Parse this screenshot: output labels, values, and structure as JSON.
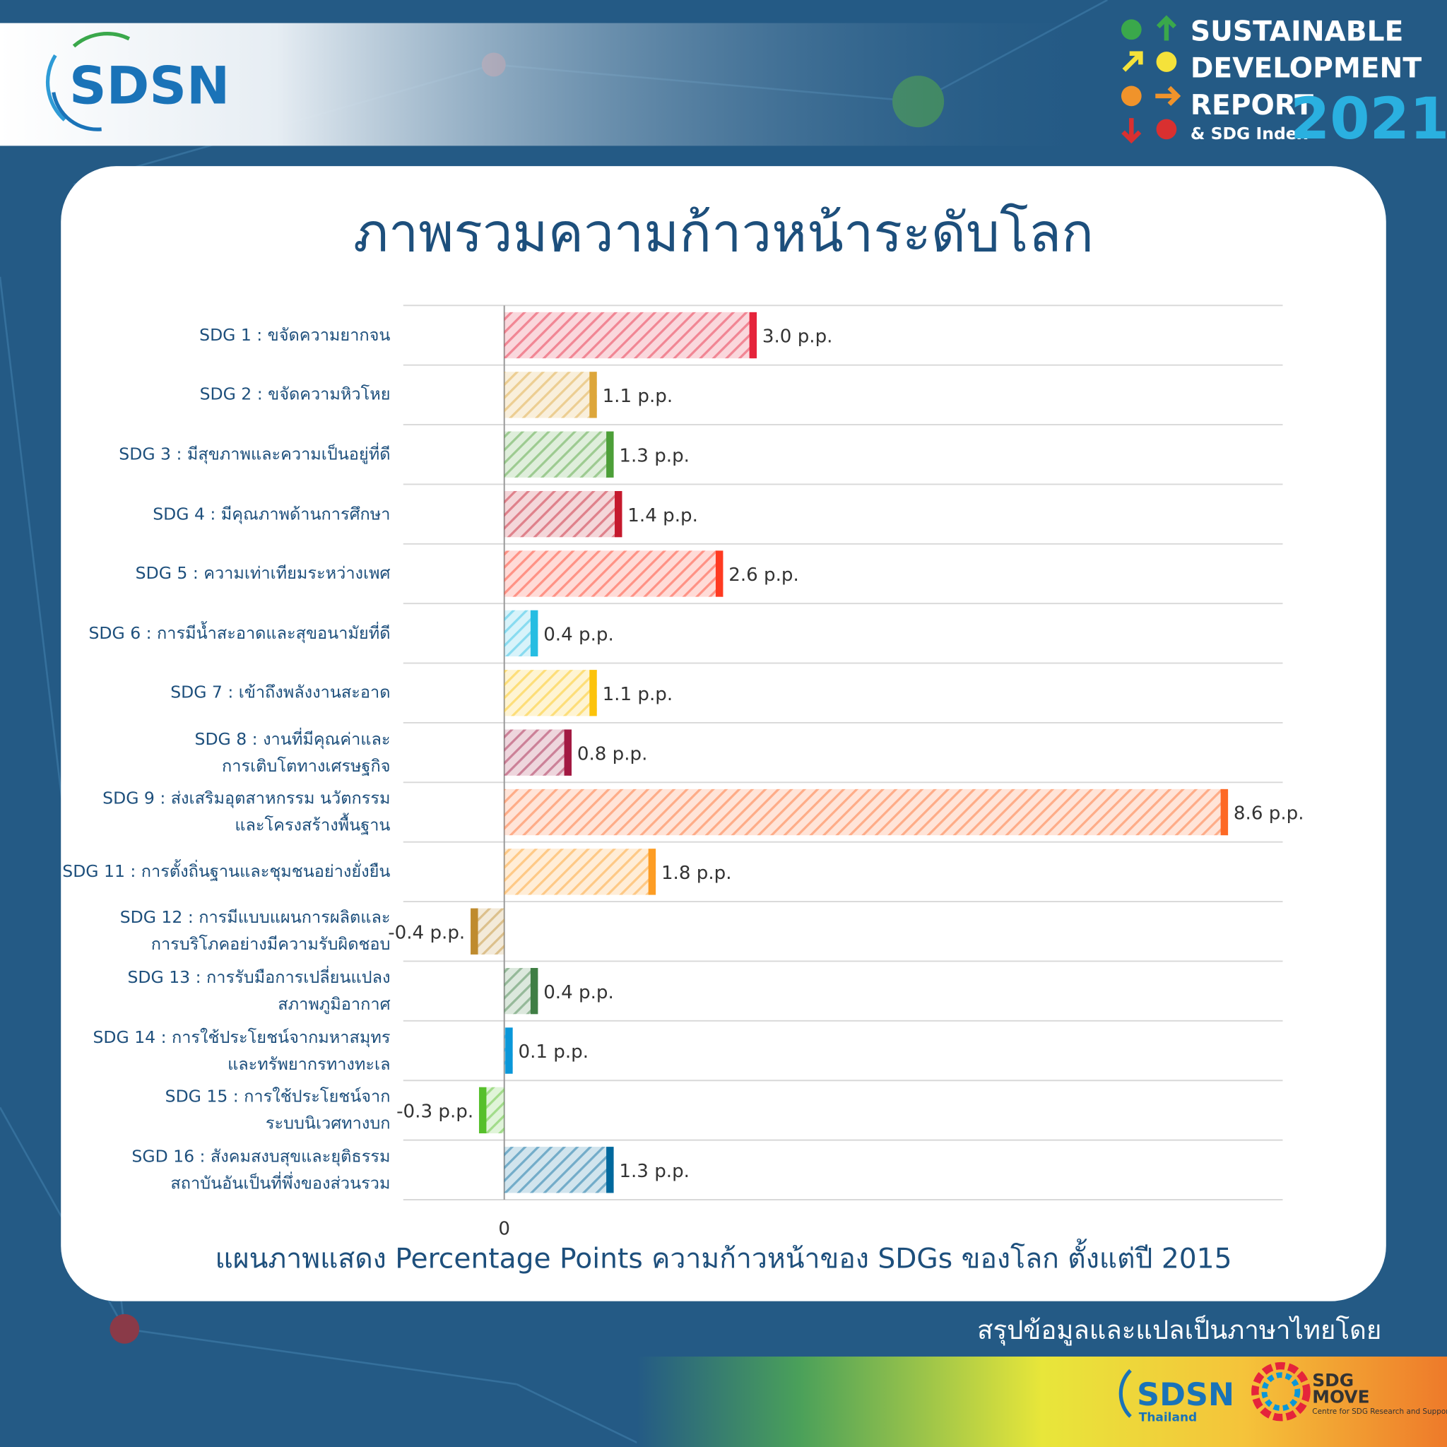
{
  "chart_data": {
    "type": "bar",
    "orientation": "horizontal",
    "title": "ภาพรวมความก้าวหน้าระดับโลก",
    "caption": "แผนภาพแสดง Percentage Points ความก้าวหน้าของ SDGs ของโลก ตั้งแต่ปี 2015",
    "categories": [
      "SDG 1 : ขจัดความยากจน",
      "SDG 2 : ขจัดความหิวโหย",
      "SDG 3 : มีสุขภาพและความเป็นอยู่ที่ดี",
      "SDG 4 : มีคุณภาพด้านการศึกษา",
      "SDG 5 : ความเท่าเทียมระหว่างเพศ",
      "SDG 6 : การมีน้ำสะอาดและสุขอนามัยที่ดี",
      "SDG 7 : เข้าถึงพลังงานสะอาด",
      "SDG 8 : งานที่มีคุณค่าและ\nการเติบโตทางเศรษฐกิจ",
      "SDG 9 : ส่งเสริมอุตสาหกรรม นวัตกรรม\nและโครงสร้างพื้นฐาน",
      "SDG 11 : การตั้งถิ่นฐานและชุมชนอย่างยั่งยืน",
      "SDG 12 : การมีแบบแผนการผลิตและ\nการบริโภคอย่างมีความรับผิดชอบ",
      "SDG 13 : การรับมือการเปลี่ยนแปลง\nสภาพภูมิอากาศ",
      "SDG 14 : การใช้ประโยชน์จากมหาสมุทร\nและทรัพยากรทางทะเล",
      "SDG 15 : การใช้ประโยชน์จาก\nระบบนิเวศทางบก",
      "SGD 16 : สังคมสงบสุขและยุติธรรม\nสถาบันอันเป็นที่พึ่งของส่วนรวม"
    ],
    "values": [
      3.0,
      1.1,
      1.3,
      1.4,
      2.6,
      0.4,
      1.1,
      0.8,
      8.6,
      1.8,
      -0.4,
      0.4,
      0.1,
      -0.3,
      1.3
    ],
    "value_labels": [
      "3.0 p.p.",
      "1.1 p.p.",
      "1.3 p.p.",
      "1.4 p.p.",
      "2.6 p.p.",
      "0.4 p.p.",
      "1.1 p.p.",
      "0.8 p.p.",
      "8.6 p.p.",
      "1.8 p.p.",
      "-0.4 p.p.",
      "0.4 p.p.",
      "0.1 p.p.",
      "-0.3 p.p.",
      "1.3 p.p."
    ],
    "colors": [
      "#e5243b",
      "#dda63a",
      "#4c9f38",
      "#c5192d",
      "#ff3a21",
      "#26bde2",
      "#fcc30b",
      "#a21942",
      "#fd6925",
      "#fd9d24",
      "#bf8b2e",
      "#3f7e44",
      "#0a97d9",
      "#56c02b",
      "#00689d"
    ],
    "xlim": [
      -1.2,
      9.25
    ],
    "xticks": [
      0
    ],
    "grid": true
  },
  "header": {
    "logo": "SDSN",
    "report_title": [
      "SUSTAINABLE",
      "DEVELOPMENT",
      "REPORT"
    ],
    "report_subtitle": "& SDG Index",
    "year": "2021"
  },
  "footer": {
    "credit": "สรุปข้อมูลและแปลเป็นภาษาไทยโดย",
    "partners": [
      {
        "name": [
          "SDSN"
        ],
        "subname": "Thailand"
      },
      {
        "name": [
          "SDG",
          "MOVE"
        ],
        "subname": "Centre for SDG Research and Support"
      }
    ]
  }
}
